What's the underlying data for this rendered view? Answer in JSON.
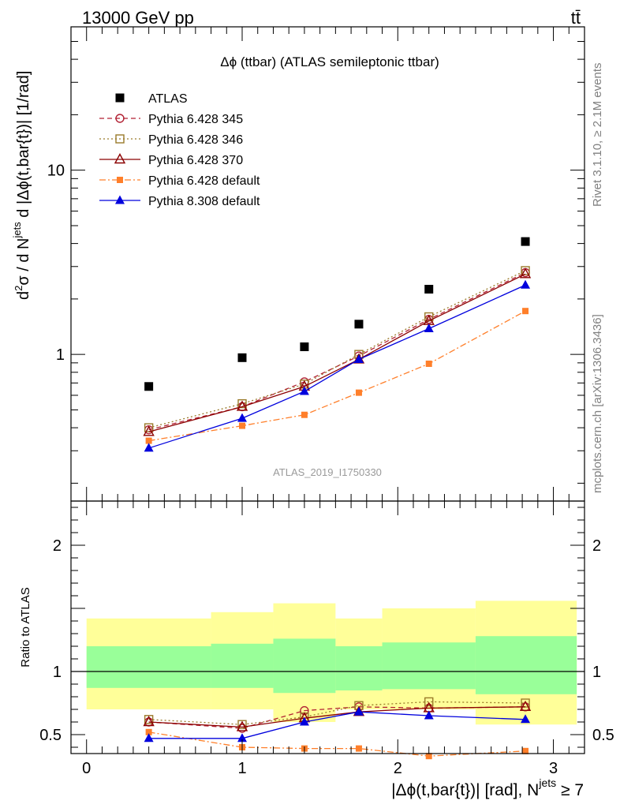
{
  "header": {
    "energy_label": "13000 GeV pp",
    "process_label": "tt̄"
  },
  "side_labels": {
    "rivet": "Rivet 3.1.10, ≥ 2.1M events",
    "source": "mcplots.cern.ch [arXiv:1306.3436]"
  },
  "watermark": "ATLAS_2019_I1750330",
  "chart_data": [
    {
      "type": "scatter",
      "panel": "main",
      "title": "Δϕ (ttbar) (ATLAS semileptonic ttbar)",
      "ylabel": "d²σ / d N^jets d |Δϕ(t,bar{t})| [1/rad]",
      "yscale": "log",
      "ylim": [
        0.16,
        60
      ],
      "xlim": [
        -0.1,
        3.2
      ],
      "y_ticks": [
        "1",
        "10"
      ],
      "legend_position": "top-left",
      "x": [
        0.4,
        1.0,
        1.4,
        1.75,
        2.2,
        2.82
      ],
      "series": [
        {
          "name": "ATLAS",
          "color": "#000000",
          "values": [
            0.67,
            0.96,
            1.1,
            1.46,
            2.26,
            4.1
          ]
        },
        {
          "name": "Pythia 6.428 345",
          "color": "#b22234",
          "values": [
            0.39,
            0.52,
            0.71,
            0.98,
            1.55,
            2.78
          ]
        },
        {
          "name": "Pythia 6.428 346",
          "color": "#8b6b1f",
          "values": [
            0.4,
            0.54,
            0.69,
            1.0,
            1.6,
            2.85
          ]
        },
        {
          "name": "Pythia 6.428 370",
          "color": "#8b0000",
          "values": [
            0.38,
            0.52,
            0.67,
            0.94,
            1.52,
            2.73
          ]
        },
        {
          "name": "Pythia 6.428 default",
          "color": "#ff7f2a",
          "values": [
            0.34,
            0.41,
            0.47,
            0.62,
            0.89,
            1.72
          ]
        },
        {
          "name": "Pythia 8.308 default",
          "color": "#0000dd",
          "values": [
            0.31,
            0.45,
            0.63,
            0.94,
            1.38,
            2.38
          ]
        }
      ]
    },
    {
      "type": "scatter",
      "panel": "ratio",
      "ylabel": "Ratio to ATLAS",
      "xlabel": "|Δϕ(t,bar{t})| [rad], N^jets ≥ 7",
      "ylim": [
        0.35,
        2.35
      ],
      "xlim": [
        -0.1,
        3.2
      ],
      "x_ticks": [
        "0",
        "1",
        "2",
        "3"
      ],
      "y_ticks": [
        "0.5",
        "1",
        "2"
      ],
      "x": [
        0.4,
        1.0,
        1.4,
        1.75,
        2.2,
        2.82
      ],
      "bands": [
        {
          "x_low": 0.0,
          "x_high": 0.8,
          "yellow": [
            0.7,
            1.42
          ],
          "green": [
            0.87,
            1.2
          ]
        },
        {
          "x_low": 0.8,
          "x_high": 1.2,
          "yellow": [
            0.7,
            1.47
          ],
          "green": [
            0.87,
            1.22
          ]
        },
        {
          "x_low": 1.2,
          "x_high": 1.6,
          "yellow": [
            0.6,
            1.54
          ],
          "green": [
            0.83,
            1.26
          ]
        },
        {
          "x_low": 1.6,
          "x_high": 1.9,
          "yellow": [
            0.7,
            1.42
          ],
          "green": [
            0.85,
            1.2
          ]
        },
        {
          "x_low": 1.9,
          "x_high": 2.5,
          "yellow": [
            0.7,
            1.5
          ],
          "green": [
            0.86,
            1.23
          ]
        },
        {
          "x_low": 2.5,
          "x_high": 3.15,
          "yellow": [
            0.58,
            1.56
          ],
          "green": [
            0.82,
            1.28
          ]
        }
      ],
      "series": [
        {
          "name": "Pythia 6.428 345",
          "values": [
            0.6,
            0.55,
            0.69,
            0.72,
            0.71,
            0.72
          ]
        },
        {
          "name": "Pythia 6.428 346",
          "values": [
            0.62,
            0.58,
            0.64,
            0.73,
            0.76,
            0.75
          ]
        },
        {
          "name": "Pythia 6.428 370",
          "values": [
            0.6,
            0.56,
            0.63,
            0.68,
            0.71,
            0.72
          ]
        },
        {
          "name": "Pythia 6.428 default",
          "values": [
            0.52,
            0.4,
            0.39,
            0.39,
            0.33,
            0.37
          ]
        },
        {
          "name": "Pythia 8.308 default",
          "values": [
            0.47,
            0.47,
            0.6,
            0.68,
            0.65,
            0.62
          ]
        }
      ]
    }
  ]
}
